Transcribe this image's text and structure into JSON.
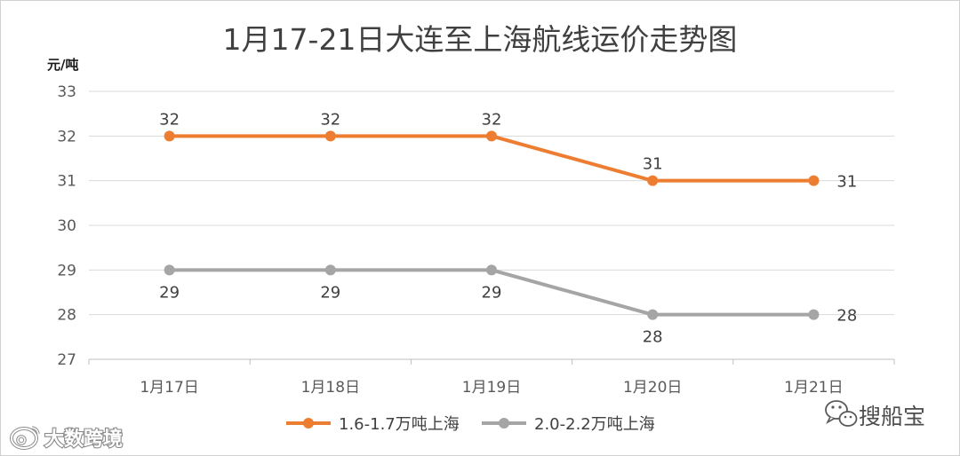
{
  "chart_data": {
    "type": "line",
    "title": "1月17-21日大连至上海航线运价走势图",
    "xlabel": "",
    "ylabel": "元/吨",
    "categories": [
      "1月17日",
      "1月18日",
      "1月19日",
      "1月20日",
      "1月21日"
    ],
    "ylim": [
      27,
      33
    ],
    "yticks": [
      27,
      28,
      29,
      30,
      31,
      32,
      33
    ],
    "grid": true,
    "legend": "bottom",
    "series": [
      {
        "name": "1.6-1.7万吨上海",
        "values": [
          32,
          32,
          32,
          31,
          31
        ],
        "color": "#ED7D31"
      },
      {
        "name": "2.0-2.2万吨上海",
        "values": [
          29,
          29,
          29,
          28,
          28
        ],
        "color": "#A5A5A5"
      }
    ]
  },
  "watermarks": {
    "left": {
      "icon": "weibo-logo-icon",
      "text": "大数跨境"
    },
    "right": {
      "icon": "wechat-icon",
      "text": "搜船宝"
    }
  }
}
